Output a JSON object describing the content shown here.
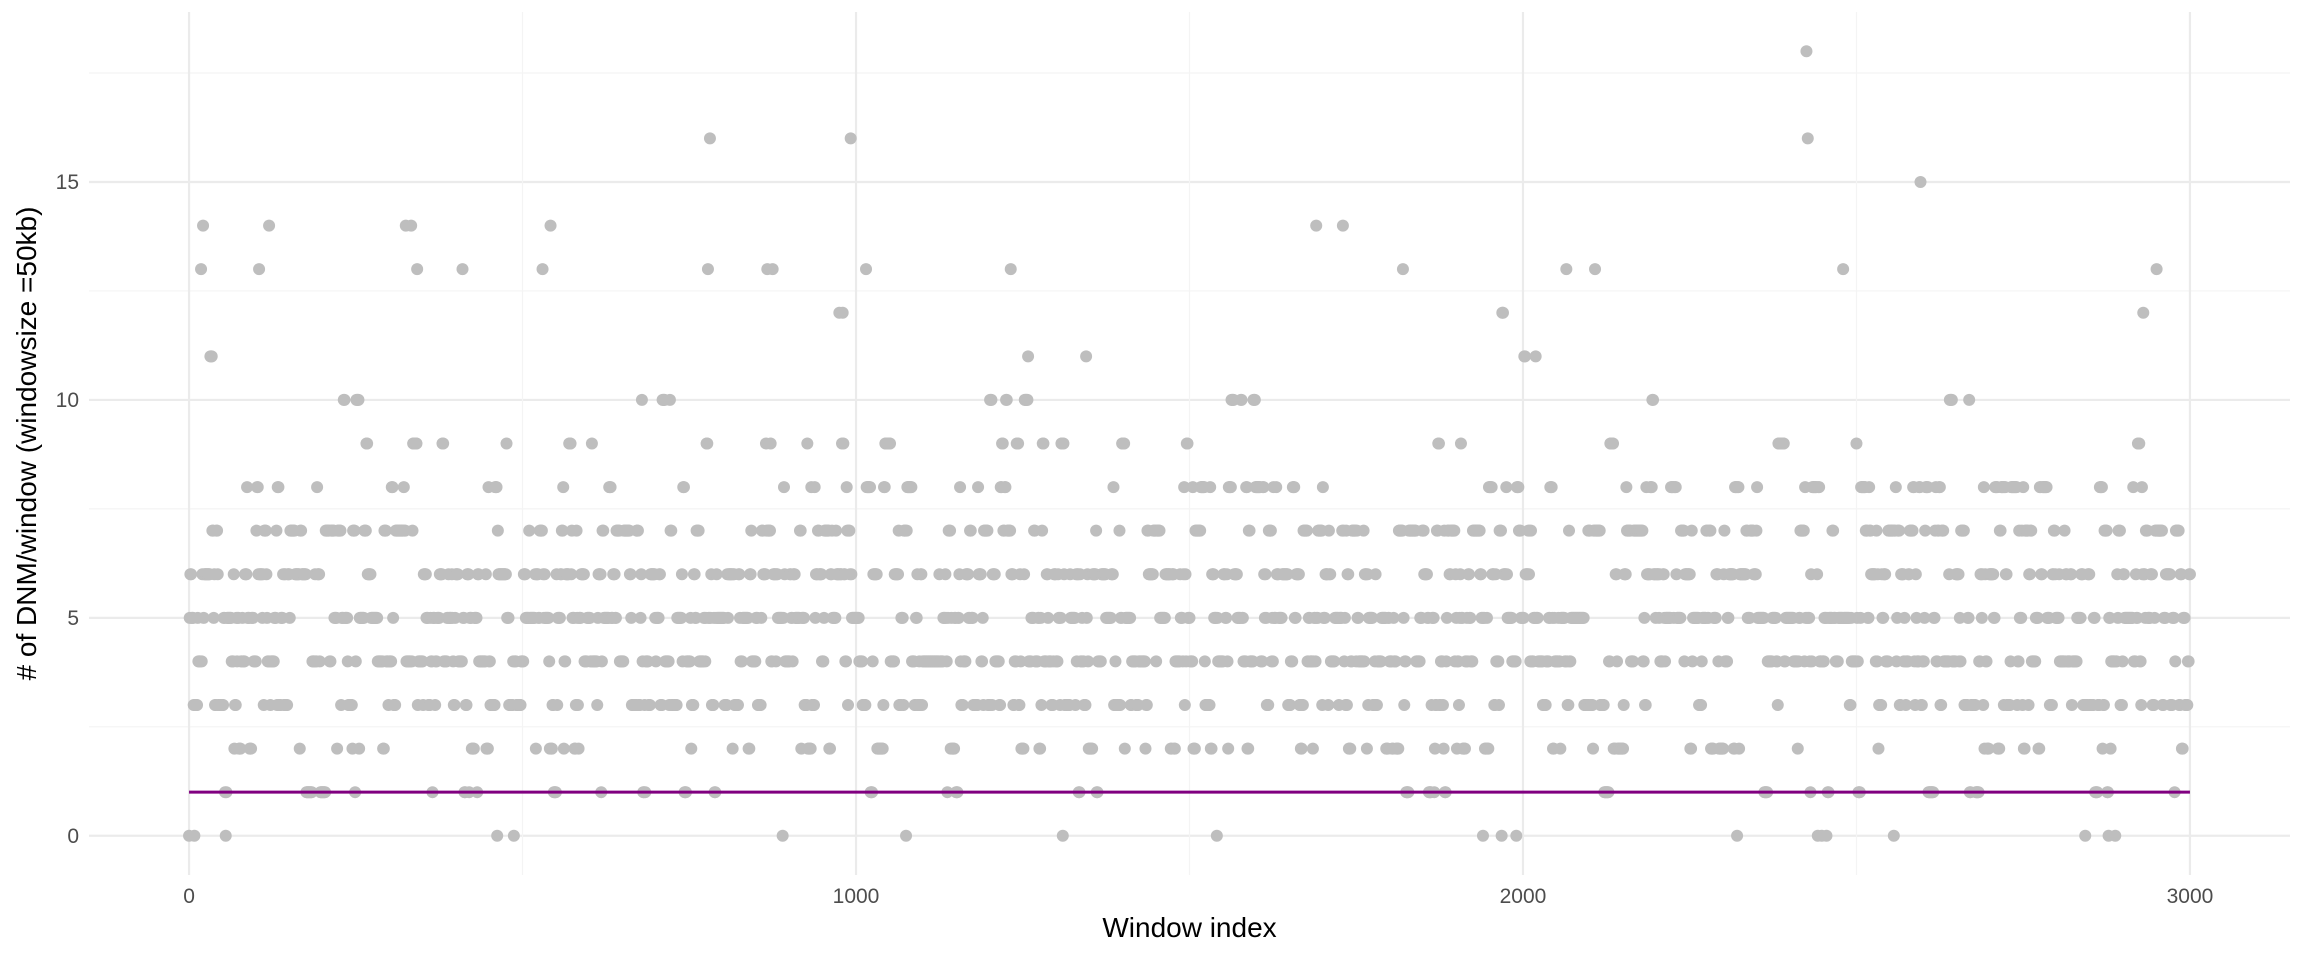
{
  "chart_data": {
    "type": "scatter",
    "title": "",
    "xlabel": "Window index",
    "ylabel": "# of DNM/window (windowsize =50kb)",
    "xlim": [
      -150,
      3150
    ],
    "ylim": [
      -0.9,
      18.9
    ],
    "x_ticks": [
      0,
      1000,
      2000,
      3000
    ],
    "x_tick_labels": [
      "0",
      "1000",
      "2000",
      "3000"
    ],
    "y_ticks": [
      0,
      5,
      10,
      15
    ],
    "y_tick_labels": [
      "0",
      "5",
      "10",
      "15"
    ],
    "grid": true,
    "point_color": "#bebebe",
    "line_color": "#800080",
    "n_windows": 3001,
    "reference_line": {
      "y": 1
    },
    "highlighted_points": [
      {
        "x": 0,
        "y": 0
      },
      {
        "x": 8,
        "y": 0
      },
      {
        "x": 55,
        "y": 0
      },
      {
        "x": 462,
        "y": 0
      },
      {
        "x": 487,
        "y": 0
      },
      {
        "x": 890,
        "y": 0
      },
      {
        "x": 1075,
        "y": 0
      },
      {
        "x": 1310,
        "y": 0
      },
      {
        "x": 1541,
        "y": 0
      },
      {
        "x": 1940,
        "y": 0
      },
      {
        "x": 1968,
        "y": 0
      },
      {
        "x": 1990,
        "y": 0
      },
      {
        "x": 2321,
        "y": 0
      },
      {
        "x": 2442,
        "y": 0
      },
      {
        "x": 2448,
        "y": 0
      },
      {
        "x": 2455,
        "y": 0
      },
      {
        "x": 2556,
        "y": 0
      },
      {
        "x": 2843,
        "y": 0
      },
      {
        "x": 2878,
        "y": 0
      },
      {
        "x": 2888,
        "y": 0
      },
      {
        "x": 18,
        "y": 13
      },
      {
        "x": 21,
        "y": 14
      },
      {
        "x": 105,
        "y": 13
      },
      {
        "x": 120,
        "y": 14
      },
      {
        "x": 325,
        "y": 14
      },
      {
        "x": 333,
        "y": 14
      },
      {
        "x": 342,
        "y": 13
      },
      {
        "x": 410,
        "y": 13
      },
      {
        "x": 530,
        "y": 13
      },
      {
        "x": 542,
        "y": 14
      },
      {
        "x": 778,
        "y": 13
      },
      {
        "x": 781,
        "y": 16
      },
      {
        "x": 867,
        "y": 13
      },
      {
        "x": 875,
        "y": 13
      },
      {
        "x": 975,
        "y": 12
      },
      {
        "x": 980,
        "y": 12
      },
      {
        "x": 992,
        "y": 16
      },
      {
        "x": 1015,
        "y": 13
      },
      {
        "x": 1232,
        "y": 13
      },
      {
        "x": 1690,
        "y": 14
      },
      {
        "x": 1730,
        "y": 14
      },
      {
        "x": 1820,
        "y": 13
      },
      {
        "x": 2065,
        "y": 13
      },
      {
        "x": 2108,
        "y": 13
      },
      {
        "x": 2425,
        "y": 18
      },
      {
        "x": 2427,
        "y": 16
      },
      {
        "x": 2480,
        "y": 13
      },
      {
        "x": 2596,
        "y": 15
      },
      {
        "x": 2930,
        "y": 12
      },
      {
        "x": 2950,
        "y": 13
      }
    ],
    "bulk_value_range": [
      1,
      12
    ],
    "bulk_value_mode": 5
  }
}
